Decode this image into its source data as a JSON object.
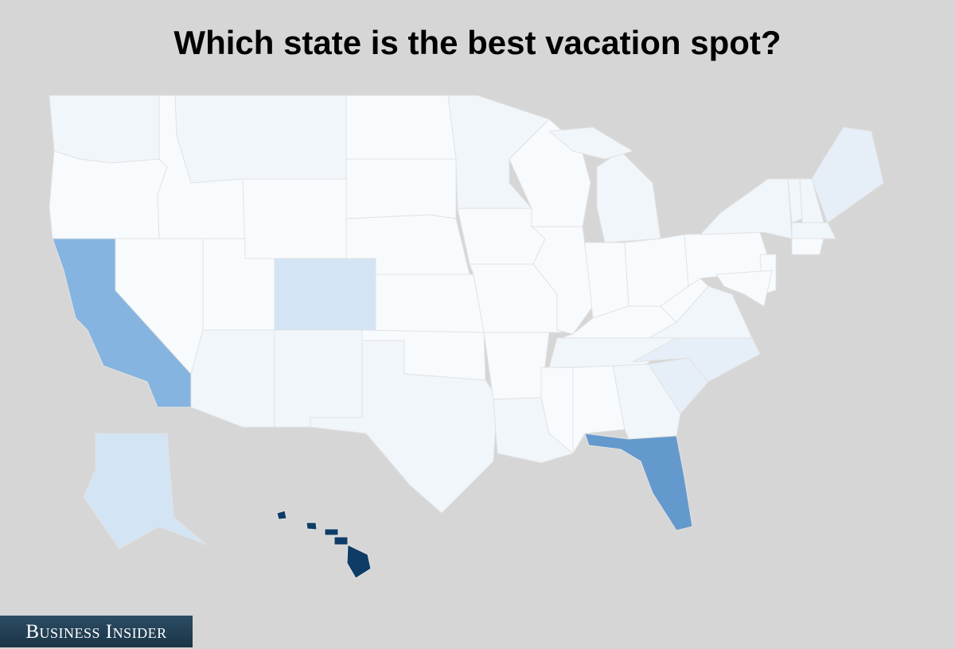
{
  "title": "Which state is the best vacation spot?",
  "logo": "Business Insider",
  "chart_data": {
    "type": "choropleth",
    "title": "Which state is the best vacation spot?",
    "region": "United States",
    "colors": {
      "background": "#d6d6d6",
      "level0": "#f8fbfe",
      "level1": "#f1f6fb",
      "level2": "#e6eff8",
      "level3": "#d3e4f4",
      "level4": "#85b4e0",
      "level5": "#6499cd",
      "level6": "#0e3c66"
    },
    "states": {
      "HI": 6,
      "FL": 5,
      "CA": 4,
      "CO": 3,
      "AK": 3,
      "NC": 2,
      "SC": 2,
      "ME": 2,
      "VA": 1,
      "NY": 1,
      "MT": 1,
      "WA": 1,
      "AZ": 1,
      "NM": 1,
      "TX": 1,
      "LA": 1,
      "GA": 1,
      "TN": 1,
      "MA": 1,
      "NH": 1,
      "VT": 1,
      "MN": 1,
      "MI": 1,
      "OR": 0,
      "NV": 0,
      "ID": 0,
      "UT": 0,
      "WY": 0,
      "ND": 0,
      "SD": 0,
      "NE": 0,
      "KS": 0,
      "OK": 0,
      "IA": 0,
      "MO": 0,
      "AR": 0,
      "MS": 0,
      "AL": 0,
      "WI": 0,
      "IL": 0,
      "IN": 0,
      "OH": 0,
      "KY": 0,
      "WV": 0,
      "PA": 0,
      "NJ": 0,
      "MD": 0,
      "CT": 0
    }
  }
}
